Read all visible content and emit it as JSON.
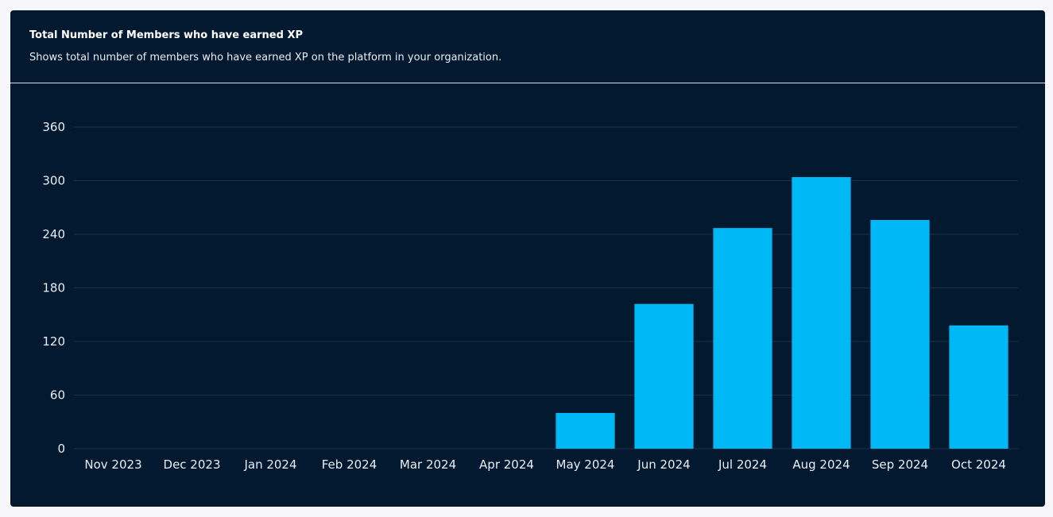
{
  "card": {
    "title": "Total Number of Members who have earned XP",
    "subtitle": "Shows total number of members who have earned XP on the platform in your organization."
  },
  "colors": {
    "background": "#03192f",
    "bar": "#00b8f5",
    "grid": "#1c3046",
    "text": "#e9eef5"
  },
  "chart_data": {
    "type": "bar",
    "title": "Total Number of Members who have earned XP",
    "xlabel": "",
    "ylabel": "",
    "categories": [
      "Nov 2023",
      "Dec 2023",
      "Jan 2024",
      "Feb 2024",
      "Mar 2024",
      "Apr 2024",
      "May 2024",
      "Jun 2024",
      "Jul 2024",
      "Aug 2024",
      "Sep 2024",
      "Oct 2024"
    ],
    "values": [
      0,
      0,
      0,
      0,
      0,
      0,
      40,
      162,
      247,
      304,
      256,
      138
    ],
    "ylim": [
      0,
      360
    ],
    "yticks": [
      0,
      60,
      120,
      180,
      240,
      300,
      360
    ],
    "grid": true,
    "legend": "none"
  }
}
